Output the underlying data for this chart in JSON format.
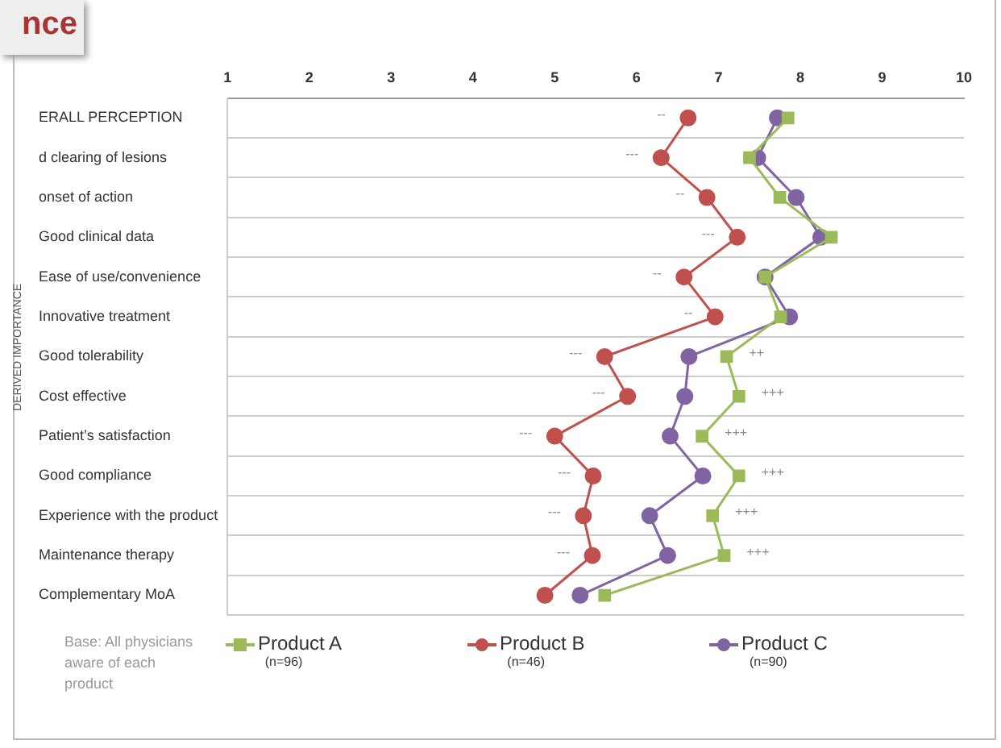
{
  "chart_data": {
    "type": "line",
    "orientation": "horizontal",
    "ylabel": "DERIVED IMPORTANCE",
    "categories": [
      "ERALL PERCEPTION",
      "d clearing of lesions",
      "onset of action",
      "Good clinical data",
      "Ease of use/convenience",
      "Innovative treatment",
      "Good tolerability",
      "Cost effective",
      "Patient’s satisfaction",
      "Good compliance",
      "Experience with the product",
      "Maintenance therapy",
      "Complementary MoA"
    ],
    "series": [
      {
        "name": "Product A\n(n=96)",
        "color": "#9bbb59",
        "marker": "square",
        "values": [
          7.85,
          7.38,
          7.75,
          8.38,
          7.57,
          7.76,
          7.1,
          7.25,
          6.8,
          7.25,
          6.93,
          7.07,
          5.61
        ]
      },
      {
        "name": "Product B\n(n=46)",
        "color": "#c0504d",
        "marker": "circle",
        "values": [
          6.63,
          6.3,
          6.86,
          7.23,
          6.58,
          6.96,
          5.61,
          5.89,
          5.0,
          5.47,
          5.35,
          5.46,
          4.88
        ]
      },
      {
        "name": "Product C\n(n=90)",
        "color": "#8064a2",
        "marker": "circle",
        "values": [
          7.72,
          7.48,
          7.95,
          8.25,
          7.57,
          7.87,
          6.64,
          6.59,
          6.41,
          6.81,
          6.16,
          6.38,
          5.31
        ]
      }
    ],
    "xlim": [
      1,
      10
    ],
    "xticks": [
      1,
      2,
      3,
      4,
      5,
      6,
      7,
      8,
      9,
      10
    ],
    "grid": "y",
    "legend": "bottom",
    "line_style": "solid",
    "annotations": [
      {
        "text": "--",
        "x": 6.63,
        "y": "ERALL PERCEPTION"
      },
      {
        "text": "---",
        "x": 6.3,
        "y": "d clearing of lesions"
      },
      {
        "text": "--",
        "x": 6.86,
        "y": "onset of action"
      },
      {
        "text": "---",
        "x": 7.23,
        "y": "Good clinical data"
      },
      {
        "text": "--",
        "x": 6.58,
        "y": "Ease of use/convenience"
      },
      {
        "text": "--",
        "x": 6.96,
        "y": "Innovative treatment"
      },
      {
        "text": "---",
        "x": 5.61,
        "y": "Good tolerability"
      },
      {
        "text": "++",
        "x": 7.1,
        "y": "Good tolerability"
      },
      {
        "text": "---",
        "x": 5.89,
        "y": "Cost effective"
      },
      {
        "text": "+++",
        "x": 7.25,
        "y": "Cost effective"
      },
      {
        "text": "---",
        "x": 5.0,
        "y": "Patient’s satisfaction"
      },
      {
        "text": "+++",
        "x": 6.8,
        "y": "Patient’s satisfaction"
      },
      {
        "text": "---",
        "x": 5.47,
        "y": "Good compliance"
      },
      {
        "text": "+++",
        "x": 7.25,
        "y": "Good compliance"
      },
      {
        "text": "---",
        "x": 5.35,
        "y": "Experience with the product"
      },
      {
        "text": "+++",
        "x": 6.93,
        "y": "Experience with the product"
      },
      {
        "text": "---",
        "x": 5.46,
        "y": "Maintenance therapy"
      },
      {
        "text": "+++",
        "x": 7.07,
        "y": "Maintenance therapy"
      },
      "Base: All physicians aware of each product",
      "nce"
    ]
  }
}
